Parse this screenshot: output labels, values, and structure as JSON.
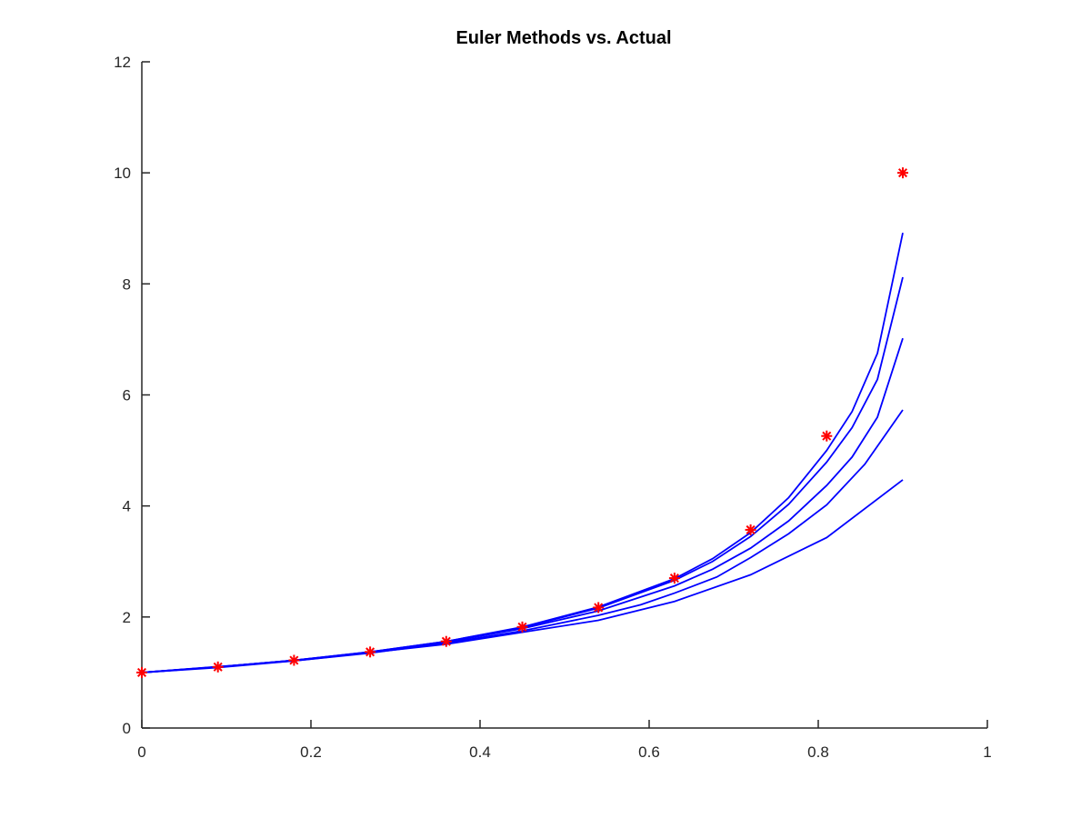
{
  "chart_data": {
    "type": "line",
    "title": "Euler Methods vs. Actual",
    "xlabel": "",
    "ylabel": "",
    "xlim": [
      0,
      1
    ],
    "ylim": [
      0,
      12
    ],
    "x_ticks": [
      0,
      0.2,
      0.4,
      0.6,
      0.8,
      1
    ],
    "x_tick_labels": [
      "0",
      "0.2",
      "0.4",
      "0.6",
      "0.8",
      "1"
    ],
    "y_ticks": [
      0,
      2,
      4,
      6,
      8,
      10,
      12
    ],
    "y_tick_labels": [
      "0",
      "2",
      "4",
      "6",
      "8",
      "10",
      "12"
    ],
    "grid": false,
    "legend": "none",
    "line_color": "#0000ff",
    "marker_color": "#ff0000",
    "series": [
      {
        "values": [
          [
            0,
            1.0
          ],
          [
            0.18,
            1.21
          ],
          [
            0.36,
            1.51
          ],
          [
            0.54,
            1.94
          ],
          [
            0.63,
            2.28
          ],
          [
            0.72,
            2.76
          ],
          [
            0.81,
            3.43
          ],
          [
            0.9,
            4.47
          ]
        ]
      },
      {
        "values": [
          [
            0,
            1.0
          ],
          [
            0.09,
            1.09
          ],
          [
            0.18,
            1.21
          ],
          [
            0.27,
            1.35
          ],
          [
            0.36,
            1.53
          ],
          [
            0.45,
            1.75
          ],
          [
            0.54,
            2.03
          ],
          [
            0.59,
            2.22
          ],
          [
            0.63,
            2.43
          ],
          [
            0.68,
            2.72
          ],
          [
            0.72,
            3.07
          ],
          [
            0.765,
            3.5
          ],
          [
            0.81,
            4.02
          ],
          [
            0.855,
            4.75
          ],
          [
            0.9,
            5.73
          ]
        ]
      },
      {
        "values": [
          [
            0,
            1.0
          ],
          [
            0.09,
            1.1
          ],
          [
            0.18,
            1.22
          ],
          [
            0.27,
            1.36
          ],
          [
            0.36,
            1.55
          ],
          [
            0.45,
            1.79
          ],
          [
            0.54,
            2.11
          ],
          [
            0.63,
            2.56
          ],
          [
            0.675,
            2.86
          ],
          [
            0.72,
            3.24
          ],
          [
            0.765,
            3.73
          ],
          [
            0.81,
            4.37
          ],
          [
            0.84,
            4.88
          ],
          [
            0.87,
            5.6
          ],
          [
            0.9,
            7.02
          ]
        ]
      },
      {
        "values": [
          [
            0,
            1.0
          ],
          [
            0.09,
            1.1
          ],
          [
            0.18,
            1.22
          ],
          [
            0.27,
            1.37
          ],
          [
            0.36,
            1.56
          ],
          [
            0.45,
            1.81
          ],
          [
            0.54,
            2.16
          ],
          [
            0.63,
            2.66
          ],
          [
            0.675,
            3.0
          ],
          [
            0.72,
            3.45
          ],
          [
            0.765,
            4.03
          ],
          [
            0.81,
            4.79
          ],
          [
            0.84,
            5.41
          ],
          [
            0.87,
            6.28
          ],
          [
            0.9,
            8.12
          ]
        ]
      },
      {
        "values": [
          [
            0,
            1.0
          ],
          [
            0.09,
            1.1
          ],
          [
            0.18,
            1.22
          ],
          [
            0.27,
            1.37
          ],
          [
            0.36,
            1.56
          ],
          [
            0.45,
            1.82
          ],
          [
            0.54,
            2.18
          ],
          [
            0.63,
            2.69
          ],
          [
            0.675,
            3.05
          ],
          [
            0.72,
            3.52
          ],
          [
            0.765,
            4.15
          ],
          [
            0.81,
            5.0
          ],
          [
            0.84,
            5.7
          ],
          [
            0.87,
            6.75
          ],
          [
            0.9,
            8.92
          ]
        ]
      }
    ],
    "markers": {
      "style": "asterisk",
      "x": [
        0,
        0.09,
        0.18,
        0.27,
        0.36,
        0.45,
        0.54,
        0.63,
        0.72,
        0.81,
        0.9
      ],
      "y": [
        1.0,
        1.1,
        1.22,
        1.37,
        1.56,
        1.82,
        2.17,
        2.7,
        3.57,
        5.26,
        10.0
      ]
    }
  }
}
